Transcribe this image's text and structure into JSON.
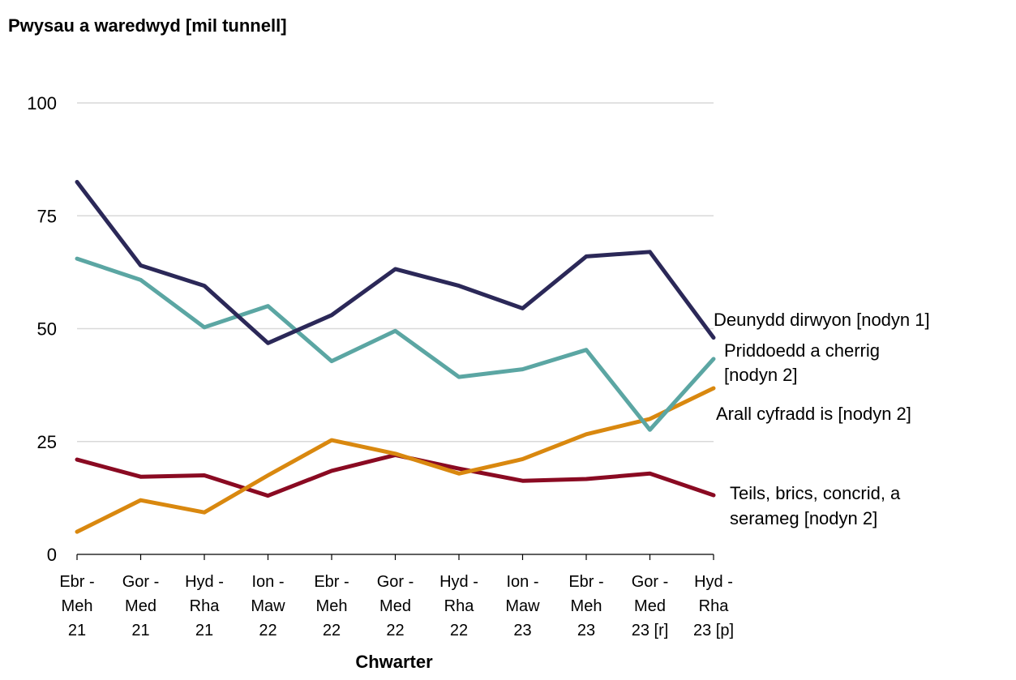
{
  "chart_data": {
    "type": "line",
    "ylabel": "Pwysau a waredwyd [mil tunnell]",
    "xlabel": "Chwarter",
    "ylim": [
      0,
      100
    ],
    "yticks": [
      "0",
      "25",
      "50",
      "75",
      "100"
    ],
    "grid": true,
    "categories": [
      [
        "Ebr -",
        "Meh",
        "21"
      ],
      [
        "Gor -",
        "Med",
        "21"
      ],
      [
        "Hyd -",
        "Rha",
        "21"
      ],
      [
        "Ion -",
        "Maw",
        "22"
      ],
      [
        "Ebr -",
        "Meh",
        "22"
      ],
      [
        "Gor -",
        "Med",
        "22"
      ],
      [
        "Hyd -",
        "Rha",
        "22"
      ],
      [
        "Ion -",
        "Maw",
        "23"
      ],
      [
        "Ebr -",
        "Meh",
        "23"
      ],
      [
        "Gor -",
        "Med",
        "23 [r]"
      ],
      [
        "Hyd -",
        "Rha",
        "23 [p]"
      ]
    ],
    "series": [
      {
        "name": "Deunydd dirwyon  [nodyn 1]",
        "label_lines": [
          "Deunydd dirwyon  [nodyn 1]"
        ],
        "color": "#2b2858",
        "values": [
          82.5,
          64,
          59.5,
          46.8,
          53,
          63.2,
          59.5,
          54.5,
          66,
          67,
          48
        ]
      },
      {
        "name": "Priddoedd a cherrig [nodyn 2]",
        "label_lines": [
          "Priddoedd a cherrig",
          "[nodyn 2]"
        ],
        "color": "#5ba6a3",
        "values": [
          65.5,
          60.8,
          50.3,
          55,
          42.8,
          49.5,
          39.3,
          41,
          45.3,
          27.6,
          43.3
        ]
      },
      {
        "name": "Arall cyfradd is [nodyn 2]",
        "label_lines": [
          "Arall cyfradd is [nodyn 2]"
        ],
        "color": "#d9880f",
        "values": [
          5,
          12,
          9.3,
          17.5,
          25.3,
          22.3,
          17.9,
          21.1,
          26.6,
          30,
          36.8
        ]
      },
      {
        "name": "Teils, brics, concrid, a serameg [nodyn 2]",
        "label_lines": [
          "Teils, brics, concrid, a",
          "serameg [nodyn 2]"
        ],
        "color": "#8a0a22",
        "values": [
          21,
          17.2,
          17.5,
          13,
          18.5,
          22,
          19,
          16.3,
          16.7,
          17.9,
          13.1
        ]
      }
    ]
  }
}
